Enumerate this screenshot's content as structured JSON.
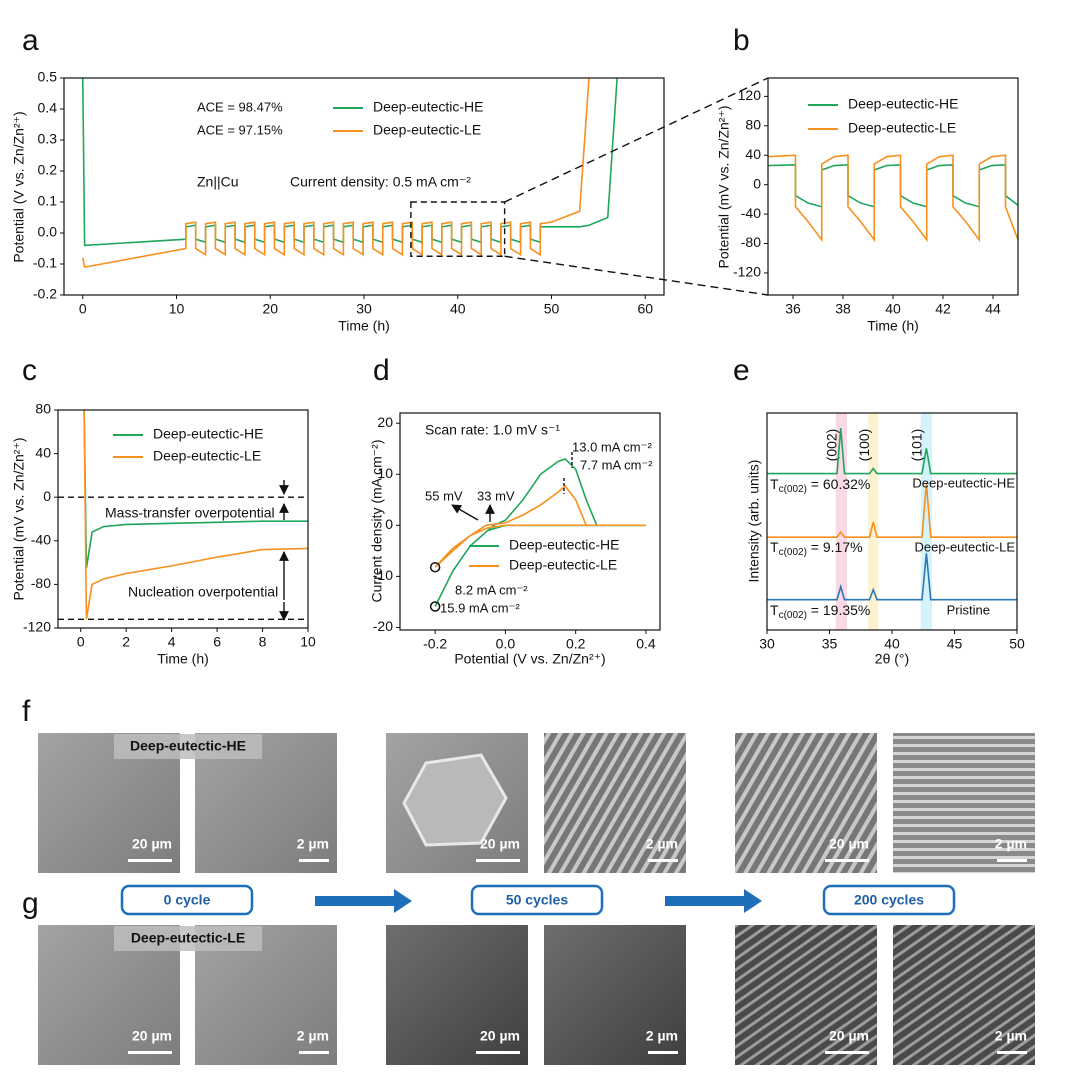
{
  "chart_data": [
    {
      "panel": "a",
      "type": "line",
      "xlabel": "Time (h)",
      "ylabel": "Potential (V vs. Zn/Zn²⁺)",
      "xlim": [
        -2,
        62
      ],
      "xticks": [
        0,
        10,
        20,
        30,
        40,
        50,
        60
      ],
      "ylim": [
        -0.2,
        0.5
      ],
      "yticks": [
        -0.2,
        -0.1,
        {
          "value": 0,
          "label": "0.0"
        },
        0.1,
        0.2,
        0.3,
        0.4,
        0.5
      ],
      "legend": "upper center",
      "x": [
        0,
        0.2,
        11,
        11,
        12.05,
        12.05,
        13.1,
        13.1,
        14.15,
        14.15,
        15.2,
        15.2,
        16.25,
        16.25,
        17.3,
        17.3,
        18.35,
        18.35,
        19.4,
        19.4,
        20.45,
        20.45,
        21.5,
        21.5,
        22.55,
        22.55,
        23.6,
        23.6,
        24.65,
        24.65,
        25.7,
        25.7,
        26.75,
        26.75,
        27.8,
        27.8,
        28.85,
        28.85,
        29.9,
        29.9,
        30.95,
        30.95,
        32,
        32,
        33.05,
        33.05,
        34.1,
        34.1,
        35.15,
        35.15,
        36.2,
        36.2,
        37.25,
        37.25,
        38.3,
        38.3,
        39.35,
        39.35,
        40.4,
        40.4,
        41.45,
        41.45,
        42.5,
        42.5,
        43.55,
        43.55,
        44.6,
        44.6,
        45.65,
        45.65,
        46.7,
        46.7,
        47.75,
        47.75,
        48.8,
        48.8,
        50,
        53,
        54,
        56,
        57
      ],
      "series": [
        {
          "name": "Deep-eutectic-HE",
          "color": "#1fa65a",
          "values": [
            0.5,
            -0.04,
            -0.02,
            0.02,
            0.025,
            -0.02,
            -0.03,
            0.02,
            0.025,
            -0.02,
            -0.03,
            0.02,
            0.025,
            -0.02,
            -0.03,
            0.02,
            0.025,
            -0.02,
            -0.03,
            0.02,
            0.025,
            -0.02,
            -0.03,
            0.02,
            0.025,
            -0.02,
            -0.03,
            0.02,
            0.025,
            -0.02,
            -0.03,
            0.02,
            0.025,
            -0.02,
            -0.03,
            0.02,
            0.025,
            -0.02,
            -0.03,
            0.02,
            0.025,
            -0.02,
            -0.03,
            0.02,
            0.025,
            -0.02,
            -0.03,
            0.02,
            0.025,
            -0.02,
            -0.03,
            0.02,
            0.025,
            -0.02,
            -0.03,
            0.02,
            0.025,
            -0.02,
            -0.03,
            0.02,
            0.025,
            -0.02,
            -0.03,
            0.02,
            0.025,
            -0.02,
            -0.03,
            0.02,
            0.025,
            -0.02,
            -0.03,
            0.02,
            0.025,
            -0.02,
            -0.03,
            0.02,
            0.02,
            0.02,
            0.025,
            0.05,
            0.5
          ]
        },
        {
          "name": "Deep-eutectic-LE",
          "color": "#f7901e",
          "values": [
            -0.08,
            -0.11,
            -0.05,
            0.03,
            0.035,
            -0.05,
            -0.07,
            0.03,
            0.035,
            -0.05,
            -0.07,
            0.03,
            0.035,
            -0.05,
            -0.07,
            0.03,
            0.035,
            -0.05,
            -0.07,
            0.03,
            0.035,
            -0.05,
            -0.07,
            0.03,
            0.035,
            -0.05,
            -0.07,
            0.03,
            0.035,
            -0.05,
            -0.07,
            0.03,
            0.035,
            -0.05,
            -0.07,
            0.03,
            0.035,
            -0.05,
            -0.07,
            0.03,
            0.035,
            -0.05,
            -0.07,
            0.03,
            0.035,
            -0.05,
            -0.07,
            0.03,
            0.035,
            -0.05,
            -0.07,
            0.03,
            0.035,
            -0.05,
            -0.07,
            0.03,
            0.035,
            -0.05,
            -0.07,
            0.03,
            0.035,
            -0.05,
            -0.07,
            0.03,
            0.035,
            -0.05,
            -0.07,
            0.03,
            0.035,
            -0.05,
            -0.07,
            0.03,
            0.035,
            -0.05,
            -0.07,
            0.03,
            0.035,
            0.07,
            0.5,
            null,
            null
          ]
        }
      ],
      "annotations": [
        "ACE = 98.47%",
        "ACE = 97.15%",
        "Zn||Cu",
        "Current density: 0.5 mA cm⁻²"
      ],
      "zoom": {
        "ylim": [
          -0.075,
          0.1
        ]
      }
    },
    {
      "panel": "b",
      "type": "line",
      "xlabel": "Time (h)",
      "ylabel": "Potential (mV vs. Zn/Zn²⁺)",
      "xlim": [
        35,
        45
      ],
      "xticks": [
        36,
        38,
        40,
        42,
        44
      ],
      "ylim": [
        -150,
        145
      ],
      "yticks": [
        -120,
        -80,
        -40,
        0,
        40,
        80,
        120
      ],
      "legend": "upper left",
      "x": [
        35,
        36.1,
        36.1,
        36.6,
        37.15,
        37.15,
        37.65,
        38.2,
        38.2,
        38.7,
        39.25,
        39.25,
        39.75,
        40.3,
        40.3,
        40.8,
        41.35,
        41.35,
        41.85,
        42.4,
        42.4,
        42.9,
        43.45,
        43.45,
        43.95,
        44.5,
        44.5,
        45
      ],
      "series": [
        {
          "name": "Deep-eutectic-HE",
          "color": "#1fa65a",
          "values": [
            26,
            27,
            -15,
            -25,
            -30,
            20,
            26,
            27,
            -15,
            -25,
            -30,
            20,
            26,
            27,
            -15,
            -25,
            -30,
            20,
            26,
            27,
            -15,
            -25,
            -30,
            20,
            26,
            27,
            -15,
            -28
          ]
        },
        {
          "name": "Deep-eutectic-LE",
          "color": "#f7901e",
          "values": [
            38,
            40,
            -30,
            -50,
            -75,
            28,
            38,
            40,
            -30,
            -50,
            -75,
            28,
            38,
            40,
            -30,
            -50,
            -75,
            28,
            38,
            40,
            -30,
            -50,
            -75,
            28,
            38,
            40,
            -30,
            -75
          ]
        }
      ]
    },
    {
      "panel": "c",
      "type": "line",
      "xlabel": "Time (h)",
      "ylabel": "Potential (mV vs. Zn/Zn²⁺)",
      "xlim": [
        -1,
        10
      ],
      "xticks": [
        0,
        2,
        4,
        6,
        8,
        10
      ],
      "ylim": [
        -120,
        80
      ],
      "yticks": [
        -120,
        -80,
        -40,
        0,
        40,
        80
      ],
      "legend": "upper left",
      "x": [
        0.15,
        0.25,
        0.5,
        1,
        2,
        4,
        6,
        8,
        10
      ],
      "series": [
        {
          "name": "Deep-eutectic-HE",
          "color": "#1fa65a",
          "values": [
            80,
            -65,
            -32,
            -27,
            -25,
            -24,
            -23,
            -22,
            -22
          ]
        },
        {
          "name": "Deep-eutectic-LE",
          "color": "#f7901e",
          "values": [
            80,
            -112,
            -80,
            -75,
            -70,
            -63,
            -55,
            -48,
            -47
          ]
        }
      ],
      "hlines": [
        0,
        -112
      ],
      "annotations": [
        "Mass-transfer overpotential",
        "Nucleation overpotential"
      ]
    },
    {
      "panel": "d",
      "type": "line",
      "xlabel": "Potential  (V vs. Zn/Zn²⁺)",
      "ylabel": "Current density (mA cm⁻²)",
      "xlim": [
        -0.3,
        0.44
      ],
      "xticks": [
        -0.2,
        {
          "value": 0,
          "label": "0.0"
        },
        0.2,
        0.4
      ],
      "ylim": [
        -20.5,
        22
      ],
      "yticks": [
        -20,
        -10,
        0,
        10,
        20
      ],
      "legend": "lower right",
      "series": [
        {
          "name": "Deep-eutectic-HE",
          "color": "#1fa65a",
          "x": [
            0.4,
            0.1,
            0.0,
            -0.05,
            -0.1,
            -0.15,
            -0.2,
            -0.15,
            -0.1,
            -0.05,
            -0.033,
            0.0,
            0.05,
            0.1,
            0.15,
            0.17,
            0.2,
            0.23,
            0.26,
            0.4
          ],
          "values": [
            0,
            0,
            0,
            -1,
            -4,
            -9,
            -15.9,
            -9,
            -4,
            -1,
            0,
            1,
            5,
            10,
            12.5,
            13,
            11,
            5,
            0,
            0
          ]
        },
        {
          "name": "Deep-eutectic-LE",
          "color": "#f7901e",
          "x": [
            0.4,
            0.1,
            0.0,
            -0.05,
            -0.1,
            -0.15,
            -0.2,
            -0.15,
            -0.1,
            -0.055,
            0.0,
            0.05,
            0.1,
            0.15,
            0.17,
            0.2,
            0.23,
            0.4
          ],
          "values": [
            0,
            0,
            0,
            -0.5,
            -2,
            -4.5,
            -8.2,
            -5,
            -2,
            0,
            0.5,
            2,
            4,
            6.5,
            7.7,
            5,
            0,
            0
          ]
        }
      ],
      "annotations": [
        "Scan rate: 1.0 mV s⁻¹",
        "13.0 mA cm⁻²",
        "7.7 mA cm⁻²",
        "55 mV",
        "33 mV",
        "8.2 mA cm⁻²",
        "15.9 mA cm⁻²"
      ]
    },
    {
      "panel": "e",
      "type": "line",
      "xlabel": "2θ (°)",
      "ylabel": "Intensity (arb. units)",
      "xlim": [
        30,
        50
      ],
      "xticks": [
        30,
        35,
        40,
        45,
        50
      ],
      "ylim": [
        0,
        4.3
      ],
      "x": [
        30,
        35.6,
        35.9,
        36.2,
        38.2,
        38.5,
        38.8,
        42.4,
        42.75,
        43.1,
        50
      ],
      "series": [
        {
          "name": "Deep-eutectic-HE",
          "color": "#1fa65a",
          "values": [
            3.1,
            3.1,
            4.0,
            3.1,
            3.1,
            3.2,
            3.1,
            3.1,
            3.6,
            3.1,
            3.1
          ]
        },
        {
          "name": "Deep-eutectic-LE",
          "color": "#f7901e",
          "values": [
            1.84,
            1.84,
            1.94,
            1.84,
            1.84,
            2.14,
            1.84,
            1.84,
            2.9,
            1.84,
            1.84
          ]
        },
        {
          "name": "Pristine",
          "color": "#2a78b8",
          "values": [
            0.6,
            0.6,
            0.86,
            0.6,
            0.6,
            0.8,
            0.6,
            0.6,
            1.52,
            0.6,
            0.6
          ]
        }
      ],
      "bands": [
        {
          "label": "(002)",
          "range": [
            35.5,
            36.4
          ],
          "color": "#fad9e6"
        },
        {
          "label": "(100)",
          "range": [
            38.1,
            38.9
          ],
          "color": "#fcf2cf"
        },
        {
          "label": "(101)",
          "range": [
            42.3,
            43.2
          ],
          "color": "#d4f3fa"
        }
      ],
      "tc_labels": [
        {
          "symbol": "T",
          "subscript": "c(002)",
          "text": " = 60.32%"
        },
        {
          "symbol": "T",
          "subscript": "c(002)",
          "text": " = 9.17%"
        },
        {
          "symbol": "T",
          "subscript": "c(002)",
          "text": " = 19.35%"
        }
      ]
    }
  ],
  "sem": {
    "panels": [
      "f",
      "g"
    ],
    "row_labels": [
      "Deep-eutectic-HE",
      "Deep-eutectic-LE"
    ],
    "scale_bars": [
      "20 µm",
      "2 µm"
    ],
    "stages": [
      "0 cycle",
      "50 cycles",
      "200 cycles"
    ]
  }
}
